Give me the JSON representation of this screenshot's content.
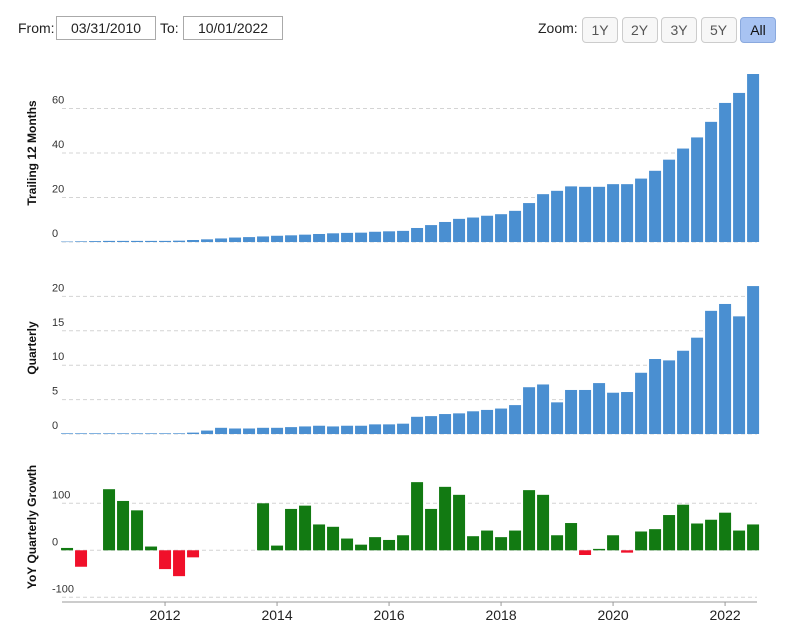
{
  "controls": {
    "from_label": "From:",
    "from_value": "03/31/2010",
    "to_label": "To:",
    "to_value": "10/01/2022",
    "zoom_label": "Zoom:",
    "zoom_buttons": [
      "1Y",
      "2Y",
      "3Y",
      "5Y",
      "All"
    ],
    "active_zoom": "All"
  },
  "chart_data": [
    {
      "type": "bar",
      "ylabel": "Trailing 12 Months",
      "color": "#4a8fd1",
      "x": [
        2010.25,
        2010.5,
        2010.75,
        2011,
        2011.25,
        2011.5,
        2011.75,
        2012,
        2012.25,
        2012.5,
        2012.75,
        2013,
        2013.25,
        2013.5,
        2013.75,
        2014,
        2014.25,
        2014.5,
        2014.75,
        2015,
        2015.25,
        2015.5,
        2015.75,
        2016,
        2016.25,
        2016.5,
        2016.75,
        2017,
        2017.25,
        2017.5,
        2017.75,
        2018,
        2018.25,
        2018.5,
        2018.75,
        2019,
        2019.25,
        2019.5,
        2019.75,
        2020,
        2020.25,
        2020.5,
        2020.75,
        2021,
        2021.25,
        2021.5,
        2021.75,
        2022,
        2022.25,
        2022.5
      ],
      "values": [
        0.2,
        0.3,
        0.4,
        0.5,
        0.5,
        0.5,
        0.5,
        0.5,
        0.6,
        0.9,
        1.2,
        1.6,
        2.0,
        2.2,
        2.5,
        2.8,
        3.0,
        3.3,
        3.6,
        3.9,
        4.1,
        4.2,
        4.6,
        4.8,
        5.0,
        6.3,
        7.6,
        9.0,
        10.4,
        11.0,
        11.8,
        12.5,
        14.0,
        17.5,
        21.5,
        23.0,
        25.0,
        24.8,
        24.8,
        26.0,
        26.0,
        28.5,
        32.0,
        37.0,
        42.0,
        47.0,
        54.0,
        62.5,
        67.0,
        75.5
      ],
      "xlim": [
        2010.16,
        2022.57
      ],
      "ylim": [
        0,
        80
      ],
      "yticks": [
        0,
        20,
        40,
        60
      ],
      "grid": true
    },
    {
      "type": "bar",
      "ylabel": "Quarterly",
      "color": "#4a8fd1",
      "x": [
        2010.25,
        2010.5,
        2010.75,
        2011,
        2011.25,
        2011.5,
        2011.75,
        2012,
        2012.25,
        2012.5,
        2012.75,
        2013,
        2013.25,
        2013.5,
        2013.75,
        2014,
        2014.25,
        2014.5,
        2014.75,
        2015,
        2015.25,
        2015.5,
        2015.75,
        2016,
        2016.25,
        2016.5,
        2016.75,
        2017,
        2017.25,
        2017.5,
        2017.75,
        2018,
        2018.25,
        2018.5,
        2018.75,
        2019,
        2019.25,
        2019.5,
        2019.75,
        2020,
        2020.25,
        2020.5,
        2020.75,
        2021,
        2021.25,
        2021.5,
        2021.75,
        2022,
        2022.25,
        2022.5
      ],
      "values": [
        0.1,
        0.1,
        0.1,
        0.1,
        0.1,
        0.1,
        0.1,
        0.1,
        0.1,
        0.2,
        0.5,
        0.9,
        0.8,
        0.8,
        0.9,
        0.9,
        1.0,
        1.1,
        1.2,
        1.1,
        1.2,
        1.2,
        1.4,
        1.4,
        1.5,
        2.5,
        2.6,
        2.9,
        3.0,
        3.3,
        3.5,
        3.7,
        4.2,
        6.8,
        7.2,
        4.6,
        6.4,
        6.4,
        7.4,
        6.0,
        6.1,
        8.9,
        10.9,
        10.7,
        12.1,
        14.0,
        17.9,
        18.9,
        17.1,
        21.5
      ],
      "xlim": [
        2010.16,
        2022.57
      ],
      "ylim": [
        0,
        25
      ],
      "yticks": [
        0,
        5,
        10,
        15,
        20
      ],
      "grid": true
    },
    {
      "type": "bar",
      "ylabel": "YoY Quarterly Growth",
      "color": "#127a12",
      "negative_color": "#f0102a",
      "x": [
        2010.25,
        2010.5,
        2010.75,
        2011,
        2011.25,
        2011.5,
        2011.75,
        2012,
        2012.25,
        2012.5,
        2012.75,
        2013,
        2013.25,
        2013.5,
        2013.75,
        2014,
        2014.25,
        2014.5,
        2014.75,
        2015,
        2015.25,
        2015.5,
        2015.75,
        2016,
        2016.25,
        2016.5,
        2016.75,
        2017,
        2017.25,
        2017.5,
        2017.75,
        2018,
        2018.25,
        2018.5,
        2018.75,
        2019,
        2019.25,
        2019.5,
        2019.75,
        2020,
        2020.25,
        2020.5,
        2020.75,
        2021,
        2021.25,
        2021.5,
        2021.75,
        2022,
        2022.25,
        2022.5
      ],
      "values": [
        5,
        -35,
        null,
        130,
        105,
        85,
        8,
        -40,
        -55,
        -15,
        null,
        null,
        null,
        null,
        100,
        10,
        88,
        95,
        55,
        50,
        25,
        12,
        28,
        22,
        32,
        145,
        88,
        135,
        118,
        30,
        42,
        28,
        42,
        128,
        118,
        32,
        58,
        -10,
        3,
        32,
        -5,
        40,
        45,
        75,
        97,
        57,
        65,
        80,
        42,
        55
      ],
      "xlim": [
        2010.16,
        2022.57
      ],
      "ylim": [
        -110,
        207
      ],
      "yticks": [
        -100,
        0,
        100
      ],
      "grid": true,
      "xticks": [
        2012,
        2014,
        2016,
        2018,
        2020,
        2022
      ]
    }
  ]
}
